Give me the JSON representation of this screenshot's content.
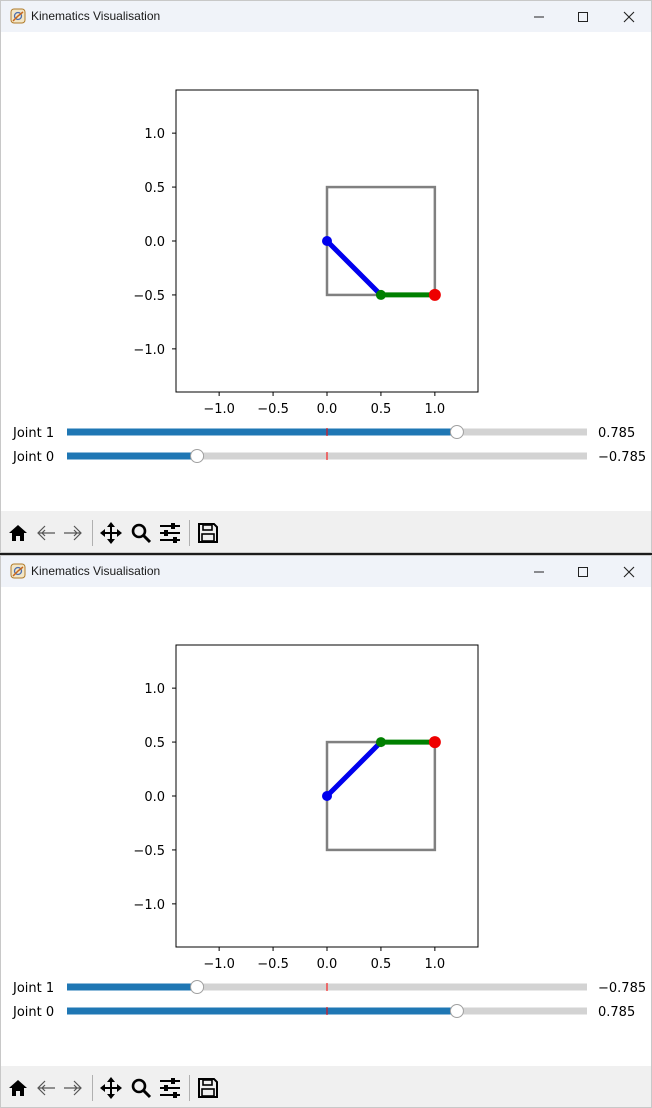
{
  "windows": [
    {
      "title": "Kinematics Visualisation",
      "plot": {
        "xticks": [
          "−1.0",
          "−0.5",
          "0.0",
          "0.5",
          "1.0"
        ],
        "yticks": [
          "1.0",
          "0.5",
          "0.0",
          "−0.5",
          "−1.0"
        ],
        "xlim": [
          -1.4,
          1.4
        ],
        "ylim": [
          -1.4,
          1.4
        ],
        "workspace_box": {
          "x": [
            0,
            1
          ],
          "y": [
            -0.5,
            0.5
          ]
        },
        "link1": {
          "from": [
            0,
            0
          ],
          "to": [
            0.5,
            -0.5
          ],
          "color": "#0000ee"
        },
        "link2": {
          "from": [
            0.5,
            -0.5
          ],
          "to": [
            1,
            -0.5
          ],
          "color": "#008000"
        },
        "end_effector": [
          1,
          -0.5
        ],
        "end_effector_color": "#ee0000"
      },
      "sliders": [
        {
          "label": "Joint 1",
          "value_text": "0.785",
          "value": 0.785
        },
        {
          "label": "Joint 0",
          "value_text": "−0.785",
          "value": -0.785
        }
      ]
    },
    {
      "title": "Kinematics Visualisation",
      "plot": {
        "xticks": [
          "−1.0",
          "−0.5",
          "0.0",
          "0.5",
          "1.0"
        ],
        "yticks": [
          "1.0",
          "0.5",
          "0.0",
          "−0.5",
          "−1.0"
        ],
        "xlim": [
          -1.4,
          1.4
        ],
        "ylim": [
          -1.4,
          1.4
        ],
        "workspace_box": {
          "x": [
            0,
            1
          ],
          "y": [
            -0.5,
            0.5
          ]
        },
        "link1": {
          "from": [
            0,
            0
          ],
          "to": [
            0.5,
            0.5
          ],
          "color": "#0000ee"
        },
        "link2": {
          "from": [
            0.5,
            0.5
          ],
          "to": [
            1,
            0.5
          ],
          "color": "#008000"
        },
        "end_effector": [
          1,
          0.5
        ],
        "end_effector_color": "#ee0000"
      },
      "sliders": [
        {
          "label": "Joint 1",
          "value_text": "−0.785",
          "value": -0.785
        },
        {
          "label": "Joint 0",
          "value_text": "0.785",
          "value": 0.785
        }
      ]
    }
  ],
  "slider_range": [
    -1.571,
    1.571
  ],
  "colors": {
    "slider_fill": "#1f77b4",
    "slider_track": "#d3d3d3",
    "slider_marker": "#ff0000",
    "box": "#808080"
  },
  "toolbar_icons": [
    "home-icon",
    "back-arrow-icon",
    "forward-arrow-icon",
    "pan-icon",
    "zoom-icon",
    "configure-subplots-icon",
    "save-icon"
  ]
}
